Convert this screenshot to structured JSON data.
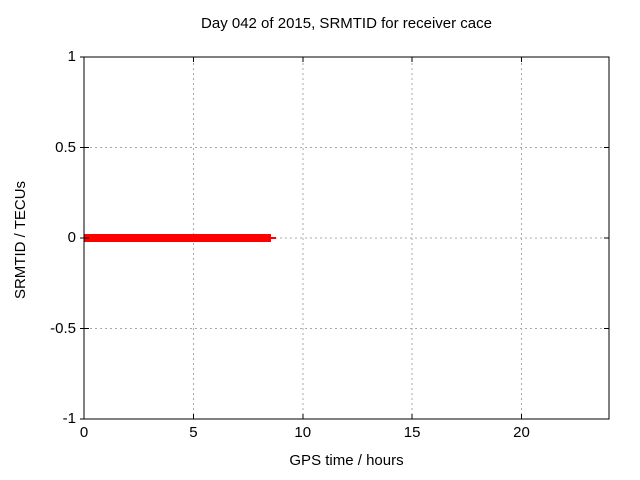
{
  "chart_data": {
    "type": "line",
    "title": "Day 042 of 2015, SRMTID for receiver cace",
    "xlabel": "GPS time / hours",
    "ylabel": "SRMTID / TECUs",
    "xlim": [
      0,
      24
    ],
    "ylim": [
      -1,
      1
    ],
    "xticks": [
      {
        "v": 0,
        "label": "0"
      },
      {
        "v": 5,
        "label": "5"
      },
      {
        "v": 10,
        "label": "10"
      },
      {
        "v": 15,
        "label": "15"
      },
      {
        "v": 20,
        "label": "20"
      }
    ],
    "yticks": [
      {
        "v": -1,
        "label": "-1"
      },
      {
        "v": -0.5,
        "label": "-0.5"
      },
      {
        "v": 0,
        "label": "0"
      },
      {
        "v": 0.5,
        "label": "0.5"
      },
      {
        "v": 1,
        "label": "1"
      }
    ],
    "grid": true,
    "legend": false,
    "series": [
      {
        "name": "SRMTID",
        "color": "#ff0000",
        "description": "constant zero value from t=0 to t=8.8 hours",
        "segments": [
          {
            "x": [
              0,
              8.55
            ],
            "y": [
              0,
              0
            ],
            "linewidth": 8
          },
          {
            "x": [
              8.55,
              8.78
            ],
            "y": [
              0,
              0
            ],
            "linewidth": 2
          }
        ]
      }
    ]
  },
  "colors": {
    "background": "#ffffff",
    "axis": "#000000",
    "grid": "#aaaaaa",
    "text": "#000000",
    "series": "#ff0000"
  }
}
